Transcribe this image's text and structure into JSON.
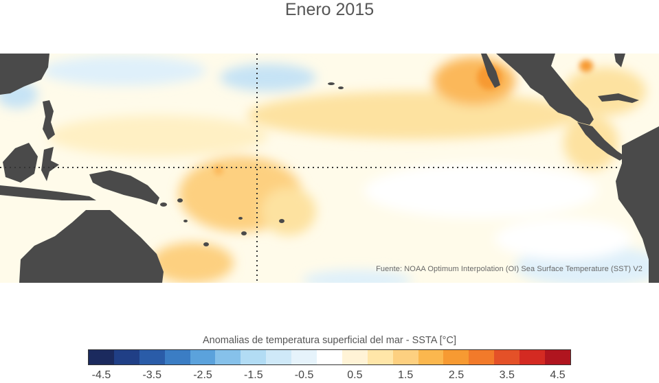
{
  "title": "Enero 2015",
  "source": "Fuente: NOAA Optimum Interpolation (OI) Sea Surface Temperature (SST) V2",
  "colorbar": {
    "label": "Anomalias de temperatura superficial del mar - SSTA  [°C]",
    "colors": [
      "#1b2a5e",
      "#203f86",
      "#2a5ca8",
      "#3b7dc4",
      "#5ba2dc",
      "#86c1ea",
      "#b2dcf4",
      "#cfe9f8",
      "#e6f3fb",
      "#ffffff",
      "#fff3d6",
      "#ffe6a8",
      "#fdd080",
      "#fbb74e",
      "#f79a32",
      "#f27a2a",
      "#e45128",
      "#d42a22",
      "#b0151f"
    ],
    "ticks": [
      "-4.5",
      "-3.5",
      "-2.5",
      "-1.5",
      "-0.5",
      "0.5",
      "1.5",
      "2.5",
      "3.5",
      "4.5"
    ]
  },
  "map_colors": {
    "land": "#4a4a4a",
    "ocean_base": "#fffbea",
    "warm_light": "#fff0c4",
    "warm_medium": "#fde2a0",
    "warm_strong": "#fbb85a",
    "warm_hot": "#f79a32",
    "cool_light": "#dff0fa",
    "cool_medium": "#c6e3f5",
    "neutral": "#ffffff",
    "grid_lines": "#333333"
  }
}
